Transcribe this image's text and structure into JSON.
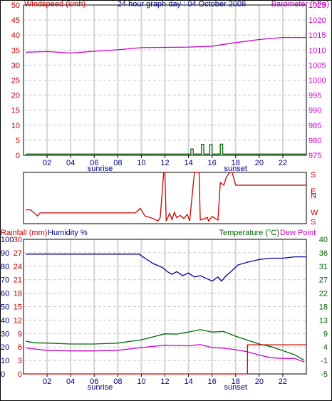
{
  "chart_data": [
    {
      "type": "line",
      "title": "24 hour graph day : 04 October 2008",
      "ylabel_left": "Windspeed (kmh)",
      "ylabel_right": "Barometer (hPa)",
      "xticks": [
        "02",
        "04",
        "06",
        "08",
        "10",
        "12",
        "14",
        "16",
        "18",
        "20",
        "22"
      ],
      "annotations": [
        "sunrise",
        "sunset"
      ],
      "yleft_ticks": [
        "0",
        "5",
        "10",
        "15",
        "20",
        "25",
        "30",
        "35",
        "40",
        "45",
        "50"
      ],
      "yright_ticks": [
        "975",
        "980",
        "985",
        "990",
        "995",
        "1000",
        "1005",
        "1010",
        "1015",
        "1020",
        "1025"
      ],
      "ylim_left": [
        0,
        50
      ],
      "ylim_right": [
        975,
        1025
      ],
      "series": [
        {
          "name": "Barometer (hPa)",
          "color": "#cc00cc",
          "axis": "right",
          "x": [
            0.2,
            2,
            4,
            6,
            8,
            10,
            12,
            14,
            16,
            18,
            20,
            22,
            24
          ],
          "y": [
            1009.3,
            1009.5,
            1009.0,
            1009.6,
            1010.1,
            1010.8,
            1010.9,
            1011.0,
            1011.3,
            1012.5,
            1013.5,
            1014.2,
            1014.2
          ]
        },
        {
          "name": "Windspeed (kmh)",
          "color": "#006600",
          "axis": "left",
          "x": [
            0.2,
            14.2,
            14.2,
            14.4,
            14.4,
            15.1,
            15.1,
            15.3,
            15.3,
            15.8,
            15.8,
            16.0,
            16.0,
            16.7,
            16.7,
            16.9,
            16.9,
            24
          ],
          "y": [
            0.4,
            0.4,
            2.1,
            2.1,
            0.4,
            0.4,
            3.6,
            3.6,
            0.4,
            0.4,
            3.5,
            3.5,
            0.4,
            0.4,
            3.7,
            3.7,
            0.4,
            0.4
          ]
        }
      ],
      "grid": true
    },
    {
      "type": "line",
      "yticks": [
        "S",
        "E",
        "N",
        "W",
        "S"
      ],
      "series": [
        {
          "name": "Wind direction",
          "color": "#cc0000",
          "x": [
            0.2,
            0.6,
            1.2,
            1.4,
            9.5,
            9.9,
            10.3,
            11.0,
            11.4,
            11.6,
            11.9,
            12.0,
            12.1,
            12.4,
            12.6,
            12.8,
            13.0,
            13.3,
            13.6,
            13.9,
            14.1,
            14.5,
            14.9,
            15.0,
            15.6,
            15.7,
            16.0,
            16.5,
            16.7,
            17.0,
            17.2,
            17.5,
            17.7,
            18.0,
            18.5,
            18.7,
            24
          ],
          "y": [
            0.73,
            0.73,
            0.85,
            0.79,
            0.79,
            0.7,
            0.85,
            0.9,
            0.95,
            0.88,
            0.0,
            0.0,
            0.95,
            0.8,
            0.92,
            0.78,
            0.88,
            0.84,
            0.9,
            0.82,
            0.95,
            0.0,
            0.0,
            0.93,
            0.88,
            0.95,
            0.86,
            0.93,
            0.2,
            0.25,
            0.1,
            0.0,
            0.0,
            0.25,
            0.25,
            0.25,
            0.25
          ]
        }
      ]
    },
    {
      "type": "line",
      "ylabel_left_1": "Rainfall (mm)",
      "ylabel_left_2": "Humidity %",
      "ylabel_right_1": "Temperature (°C)",
      "ylabel_right_2": "Dew Point",
      "xticks": [
        "02",
        "04",
        "06",
        "08",
        "10",
        "12",
        "14",
        "16",
        "18",
        "20",
        "22"
      ],
      "annotations": [
        "sunrise",
        "sunset"
      ],
      "humidity_ticks": [
        "0",
        "10",
        "20",
        "30",
        "40",
        "50",
        "60",
        "70",
        "80",
        "90",
        "100"
      ],
      "rainfall_ticks": [
        "0",
        "3",
        "6",
        "9",
        "12",
        "15",
        "18",
        "21",
        "24",
        "27",
        "30"
      ],
      "temperature_ticks": [
        "-5",
        "-1",
        "4",
        "9",
        "13",
        "18",
        "22",
        "27",
        "31",
        "36",
        "40"
      ],
      "ylim_humidity": [
        0,
        100
      ],
      "ylim_temperature": [
        -5,
        40
      ],
      "ylim_rainfall": [
        0,
        30
      ],
      "series": [
        {
          "name": "Humidity %",
          "color": "#000099",
          "axis": "humidity",
          "x": [
            0.2,
            3,
            6,
            9,
            9.8,
            10.3,
            11,
            11.8,
            12.2,
            12.6,
            13,
            13.5,
            14,
            14.5,
            15,
            15.5,
            16,
            16.5,
            16.8,
            17.2,
            17.6,
            18.2,
            19,
            20,
            21,
            22,
            23,
            24
          ],
          "y": [
            89,
            89,
            89,
            89,
            89,
            86,
            82,
            79,
            76,
            74,
            76,
            73,
            75,
            72,
            73,
            71,
            69,
            72,
            69,
            73,
            76,
            81,
            83,
            85,
            86,
            86,
            87,
            87
          ]
        },
        {
          "name": "Temperature (°C)",
          "color": "#006600",
          "axis": "temperature",
          "x": [
            0.2,
            1,
            2,
            4,
            6,
            8,
            10,
            11,
            12,
            13,
            14,
            15,
            16,
            17,
            18,
            19,
            20,
            21,
            22,
            23,
            23.8
          ],
          "y": [
            5.9,
            5.4,
            5.3,
            5.0,
            5.0,
            5.3,
            6.4,
            7.4,
            8.4,
            8.3,
            9.0,
            9.8,
            9.0,
            9.2,
            7.6,
            6.3,
            5.0,
            4.1,
            2.8,
            1.4,
            -0.4
          ]
        },
        {
          "name": "Dew Point",
          "color": "#cc00cc",
          "axis": "temperature",
          "x": [
            0.2,
            1,
            2,
            4,
            6,
            8,
            10,
            12,
            14,
            15,
            16,
            17,
            18,
            19,
            20,
            21,
            22,
            23,
            23.8
          ],
          "y": [
            3.7,
            3.3,
            2.9,
            2.7,
            2.7,
            2.9,
            3.8,
            4.6,
            4.4,
            4.8,
            3.8,
            3.6,
            3.1,
            2.4,
            1.3,
            0.4,
            0.2,
            0.2,
            -1.0
          ]
        },
        {
          "name": "Rainfall (mm)",
          "color": "#cc0000",
          "axis": "rainfall",
          "x": [
            0.2,
            19.0,
            19.0,
            24
          ],
          "y": [
            0,
            0,
            6.5,
            6.5
          ]
        }
      ],
      "grid": true
    }
  ]
}
